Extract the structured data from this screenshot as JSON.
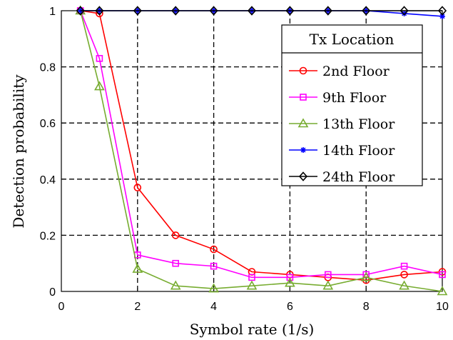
{
  "chart_data": {
    "type": "line",
    "xlabel": "Symbol rate (1/s)",
    "ylabel": "Detection probability",
    "xlim": [
      0,
      10
    ],
    "ylim": [
      0,
      1
    ],
    "xticks": [
      0,
      2,
      4,
      6,
      8,
      10
    ],
    "yticks": [
      0,
      0.2,
      0.4,
      0.6,
      0.8,
      1
    ],
    "xtick_labels": [
      "0",
      "2",
      "4",
      "6",
      "8",
      "10"
    ],
    "ytick_labels": [
      "0",
      "0.2",
      "0.4",
      "0.6",
      "0.8",
      "1"
    ],
    "grid": true,
    "grid_style": "dashed",
    "legend": {
      "title": "Tx Location",
      "placement": "top-right"
    },
    "x": [
      0.5,
      1,
      2,
      3,
      4,
      5,
      6,
      7,
      8,
      9,
      10
    ],
    "series": [
      {
        "name": "2nd Floor",
        "color": "#ff0000",
        "marker": "circle",
        "values": [
          1,
          0.99,
          0.37,
          0.2,
          0.15,
          0.07,
          0.06,
          0.05,
          0.04,
          0.06,
          0.07
        ]
      },
      {
        "name": "9th Floor",
        "color": "#ff00ff",
        "marker": "square",
        "values": [
          1,
          0.83,
          0.13,
          0.1,
          0.09,
          0.05,
          0.05,
          0.06,
          0.06,
          0.09,
          0.06
        ]
      },
      {
        "name": "13th Floor",
        "color": "#77ac30",
        "marker": "triangle",
        "values": [
          1,
          0.73,
          0.08,
          0.02,
          0.01,
          0.02,
          0.03,
          0.02,
          0.05,
          0.02,
          0.0
        ]
      },
      {
        "name": "14th Floor",
        "color": "#0000ff",
        "marker": "star",
        "values": [
          1,
          1,
          1,
          1,
          1,
          1,
          1,
          1,
          1,
          0.99,
          0.98
        ]
      },
      {
        "name": "24th Floor",
        "color": "#000000",
        "marker": "diamond",
        "values": [
          1,
          1,
          1,
          1,
          1,
          1,
          1,
          1,
          1,
          1,
          1
        ]
      }
    ]
  }
}
